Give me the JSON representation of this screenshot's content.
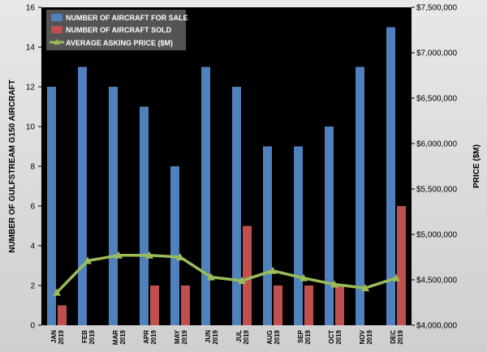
{
  "chart_data": {
    "type": "bar",
    "title": "",
    "ylabel": "NUMBER OF GULFSTREAM G150 AIRCRAFT",
    "y2label": "PRICE ($M)",
    "ylim": [
      0,
      16
    ],
    "y2lim": [
      4000000,
      7500000
    ],
    "yticks": [
      "0",
      "2",
      "4",
      "6",
      "8",
      "10",
      "12",
      "14",
      "16"
    ],
    "y2ticks": [
      "$4,000,000",
      "$4,500,000",
      "$5,000,000",
      "$5,500,000",
      "$6,000,000",
      "$6,500,000",
      "$7,000,000",
      "$7,500,000"
    ],
    "categories": [
      {
        "month": "JAN",
        "year": "2019"
      },
      {
        "month": "FEB",
        "year": "2019"
      },
      {
        "month": "MAR",
        "year": "2019"
      },
      {
        "month": "APR",
        "year": "2019"
      },
      {
        "month": "MAY",
        "year": "2019"
      },
      {
        "month": "JUN",
        "year": "2019"
      },
      {
        "month": "JUL",
        "year": "2019"
      },
      {
        "month": "AUG",
        "year": "2019"
      },
      {
        "month": "SEP",
        "year": "2019"
      },
      {
        "month": "OCT",
        "year": "2019"
      },
      {
        "month": "NOV",
        "year": "2019"
      },
      {
        "month": "DEC",
        "year": "2019"
      }
    ],
    "series": [
      {
        "name": "NUMBER OF AIRCRAFT FOR SALE",
        "type": "bar",
        "axis": "left",
        "color": "#4f81bd",
        "values": [
          12,
          13,
          12,
          11,
          8,
          13,
          12,
          9,
          9,
          10,
          13,
          15
        ]
      },
      {
        "name": "NUMBER OF AIRCRAFT SOLD",
        "type": "bar",
        "axis": "left",
        "color": "#c0504d",
        "values": [
          1,
          0,
          0,
          2,
          2,
          0,
          5,
          2,
          2,
          2,
          0,
          6
        ]
      },
      {
        "name": "AVERAGE ASKING PRICE ($M)",
        "type": "line",
        "axis": "right",
        "color": "#9bbb59",
        "values": [
          4360000,
          4710000,
          4770000,
          4770000,
          4750000,
          4530000,
          4490000,
          4600000,
          4520000,
          4450000,
          4410000,
          4520000
        ]
      }
    ],
    "legend_position": "top-left",
    "grid": false,
    "plot_background": "#000000"
  }
}
